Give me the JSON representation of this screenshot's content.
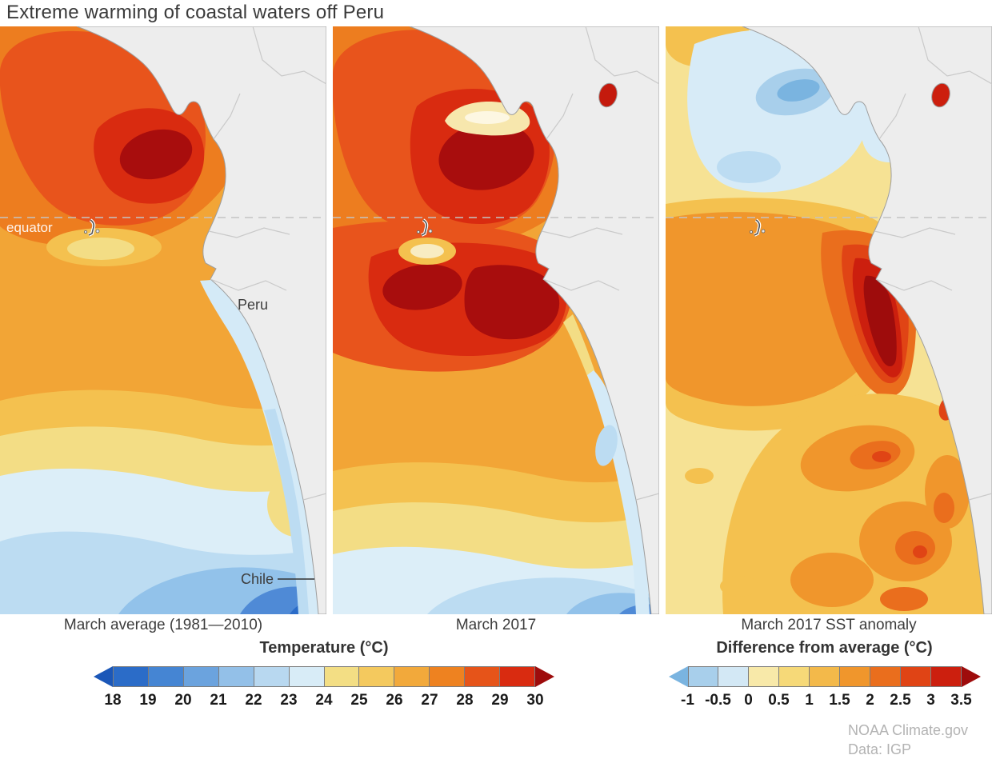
{
  "title": "Extreme warming of coastal waters off Peru",
  "panels": [
    {
      "caption": "March average (1981—2010)",
      "labels": {
        "equator": "equator",
        "peru": "Peru",
        "chile": "Chile"
      }
    },
    {
      "caption": "March 2017"
    },
    {
      "caption": "March 2017 SST anomaly"
    }
  ],
  "colorbars": [
    {
      "title": "Temperature (°C)",
      "ticks": [
        "18",
        "19",
        "20",
        "21",
        "22",
        "23",
        "24",
        "25",
        "26",
        "27",
        "28",
        "29",
        "30"
      ],
      "colors": [
        "#2b6cc8",
        "#4585d3",
        "#6ba3de",
        "#93c0e8",
        "#b8d8f0",
        "#d8ecf7",
        "#f3de84",
        "#f4c95e",
        "#f2a93b",
        "#ee8220",
        "#e65419",
        "#d92b10"
      ],
      "arrow_left": "#1b57b8",
      "arrow_right": "#9e0c0c"
    },
    {
      "title": "Difference from average (°C)",
      "ticks": [
        "-1",
        "-0.5",
        "0",
        "0.5",
        "1",
        "1.5",
        "2",
        "2.5",
        "3",
        "3.5"
      ],
      "colors": [
        "#a8cfeb",
        "#d3e8f5",
        "#f8e9a9",
        "#f6d978",
        "#f3b94a",
        "#f0962c",
        "#ea6e1d",
        "#e04415",
        "#cc1f0e"
      ],
      "arrow_left": "#7ab4e0",
      "arrow_right": "#9e0c0c"
    }
  ],
  "credits": {
    "line1": "NOAA Climate.gov",
    "line2": "Data: IGP"
  }
}
